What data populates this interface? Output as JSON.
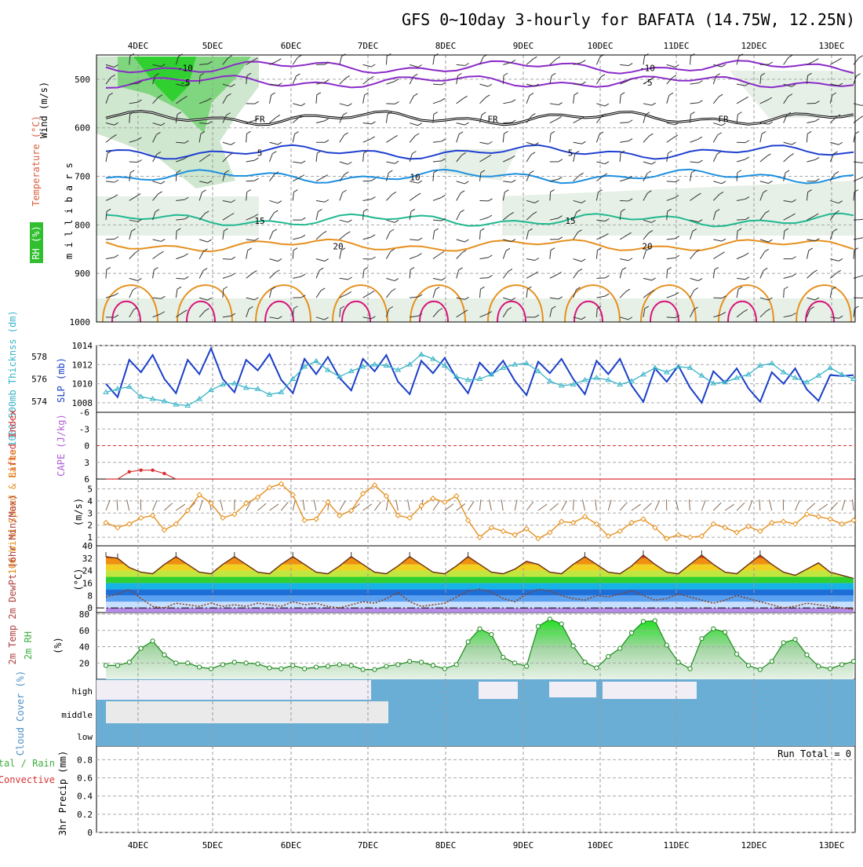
{
  "title": "GFS 0~10day 3-hourly for BAFATA (14.75W, 12.25N)",
  "colors": {
    "temp": "#e6901e",
    "thick": "#3ab5c8",
    "slp": "#1a3fc8",
    "wind": "#e6901e",
    "rh": "#3fae3f",
    "cloud": "#6aaed6",
    "frontline": "#000000",
    "li": "#d93030",
    "cape": "#b25dd6"
  },
  "chart_data": [
    {
      "type": "area",
      "name": "cross-section",
      "x_labels": [
        "4DEC",
        "5DEC",
        "6DEC",
        "7DEC",
        "8DEC",
        "9DEC",
        "10DEC",
        "11DEC",
        "12DEC",
        "13DEC"
      ],
      "ylabel": "m i l l i b a r s",
      "y_ticks": [
        "500",
        "600",
        "700",
        "800",
        "900",
        "1000"
      ],
      "ylim": [
        1000,
        450
      ],
      "side_labels": {
        "rh": "RH (%)",
        "temp": "Temperature (°C)",
        "wind": "Wind (m/s)"
      },
      "contours": [
        {
          "label": "-10",
          "p": 475,
          "color": "#8a2bc8",
          "labels_at": [
            "4DEC",
            "10DEC"
          ]
        },
        {
          "label": "-5",
          "p": 505,
          "color": "#8a2bc8",
          "labels_at": [
            "4DEC",
            "10DEC"
          ]
        },
        {
          "label": "FR",
          "p": 580,
          "color": "#000000",
          "labels_at": [
            "5DEC",
            "8DEC",
            "11DEC"
          ]
        },
        {
          "label": "5",
          "p": 650,
          "color": "#2040d0",
          "labels_at": [
            "5DEC",
            "9DEC"
          ]
        },
        {
          "label": "10",
          "p": 700,
          "color": "#1e90e0",
          "labels_at": [
            "7DEC"
          ]
        },
        {
          "label": "15",
          "p": 790,
          "color": "#20b890",
          "labels_at": [
            "5DEC",
            "9DEC"
          ]
        },
        {
          "label": "20",
          "p": 842,
          "color": "#e6901e",
          "labels_at": [
            "6DEC",
            "10DEC"
          ]
        }
      ]
    },
    {
      "type": "line",
      "name": "slp-thickness",
      "ylabel_left": "1000-500mb Thicknss (dm)",
      "ylabel_right": "SLP (mb)",
      "y_ticks_left": [
        "574",
        "576",
        "578"
      ],
      "y_ticks_right": [
        "1008",
        "1010",
        "1012",
        "1014"
      ],
      "ylim_left": [
        573,
        579
      ],
      "ylim_right": [
        1007,
        1014
      ],
      "series": [
        {
          "name": "SLP",
          "axis": "right",
          "values": [
            1010,
            1008.6,
            1012.5,
            1011.2,
            1013,
            1010.5,
            1009,
            1012.5,
            1011,
            1013.7,
            1010.5,
            1009.1,
            1012.5,
            1011.4,
            1013.1,
            1010.4,
            1009,
            1012.6,
            1011,
            1012.8,
            1010.6,
            1009.3,
            1012.6,
            1011.3,
            1013,
            1010.2,
            1008.9,
            1012.4,
            1011.1,
            1012.7,
            1010.6,
            1009,
            1012.2,
            1010.9,
            1012.4,
            1010.3,
            1008.8,
            1012.3,
            1011.1,
            1012.6,
            1010.5,
            1008.9,
            1012.4,
            1011,
            1012.6,
            1009.8,
            1008.1,
            1011.6,
            1010.2,
            1011.9,
            1009.6,
            1008,
            1011.3,
            1010.1,
            1011.6,
            1009.5,
            1008.1,
            1011.2,
            1010,
            1011.6,
            1009.4,
            1008.2,
            1010.9,
            1010.8,
            1010.9
          ]
        },
        {
          "name": "Thickness",
          "axis": "left",
          "values": [
            574.8,
            575.1,
            575.3,
            574.4,
            574.2,
            574,
            573.7,
            573.6,
            574.2,
            575,
            575.5,
            575.6,
            575.2,
            575.1,
            574.6,
            574.8,
            576,
            577.1,
            577.6,
            576.8,
            576.2,
            576.7,
            577.1,
            577.3,
            577.2,
            576.8,
            577.3,
            578.2,
            577.8,
            577.2,
            576.2,
            575.9,
            576,
            576.4,
            577,
            577.3,
            577.4,
            576.7,
            575.8,
            575.4,
            575.5,
            575.9,
            576.1,
            575.9,
            575.5,
            575.8,
            576.4,
            577,
            576.6,
            577.1,
            577,
            576.3,
            575.6,
            575.7,
            576.1,
            576.4,
            577.2,
            577.4,
            576.6,
            576.1,
            575.7,
            576.3,
            577,
            576.4,
            576
          ]
        }
      ]
    },
    {
      "type": "line",
      "name": "li-cape",
      "ylabel_left": "Lifted Index",
      "ylabel_right": "CAPE (J/kg)",
      "y_ticks": [
        "-6",
        "-3",
        "0",
        "3",
        "6"
      ],
      "ylim": [
        -6,
        6
      ],
      "series": [
        {
          "name": "Lifted Index",
          "values": [
            6,
            6,
            4.7,
            4.4,
            4.4,
            5,
            6,
            6,
            6,
            6,
            6,
            6,
            6,
            6,
            6,
            6,
            6,
            6,
            6,
            6,
            6,
            6,
            6,
            6,
            6,
            6,
            6,
            6,
            6,
            6,
            6,
            6,
            6,
            6,
            6,
            6,
            6,
            6,
            6,
            6,
            6,
            6,
            6,
            6,
            6,
            6,
            6,
            6,
            6,
            6,
            6,
            6,
            6,
            6,
            6,
            6,
            6,
            6,
            6,
            6,
            6,
            6,
            6,
            6,
            6
          ]
        }
      ]
    },
    {
      "type": "line",
      "name": "10m-wind",
      "ylabel_left": "10m Wind Speed & Barbs",
      "ylabel_right": "(m/s)",
      "y_ticks": [
        "1",
        "2",
        "3",
        "4",
        "5"
      ],
      "ylim": [
        0.3,
        5.8
      ],
      "series": [
        {
          "name": "10m Wind Speed",
          "values": [
            2.2,
            1.8,
            2.1,
            2.6,
            2.8,
            1.6,
            2.1,
            3.2,
            4.5,
            3.8,
            2.6,
            2.9,
            3.8,
            4.3,
            5.1,
            5.4,
            4.5,
            2.4,
            2.5,
            3.9,
            2.8,
            3.2,
            4.6,
            5.3,
            4.4,
            2.8,
            2.6,
            3.6,
            4.2,
            3.9,
            4.4,
            2.4,
            1,
            1.8,
            1.5,
            1.2,
            1.7,
            0.9,
            1.4,
            2.3,
            2.2,
            2.7,
            2.1,
            1.1,
            1.5,
            2.2,
            2.5,
            1.8,
            0.9,
            1.2,
            1,
            1.1,
            2.1,
            1.8,
            1.4,
            1.9,
            1.5,
            2.2,
            2.3,
            2.1,
            2.9,
            2.7,
            2.5,
            2.1,
            2.4
          ]
        }
      ]
    },
    {
      "type": "area",
      "name": "2m-temperature",
      "ylabel": "2m Temp 2m DewPt (6hr Min/Max)",
      "ylabel_right": "(°C)",
      "y_ticks": [
        "0",
        "8",
        "16",
        "24",
        "32",
        "40"
      ],
      "ylim": [
        -3,
        40
      ],
      "series": [
        {
          "name": "2m Temp",
          "values": [
            33,
            32,
            26,
            23,
            22,
            28,
            33,
            28,
            23,
            22,
            28,
            33,
            28,
            23,
            22,
            28,
            33,
            28,
            23,
            22,
            27,
            33,
            28,
            23,
            22,
            27,
            33,
            28,
            23,
            22,
            27,
            33,
            28,
            23,
            22,
            25,
            30,
            28,
            23,
            22,
            28,
            33,
            28,
            23,
            22,
            27,
            34,
            28,
            23,
            22,
            28,
            34,
            28,
            23,
            22,
            28,
            34,
            28,
            23,
            21,
            25,
            29,
            23,
            21,
            19
          ]
        },
        {
          "name": "2m DewPt",
          "values": [
            7,
            9,
            12,
            6,
            1,
            0,
            3,
            2,
            1,
            3,
            1,
            2,
            1,
            3,
            2,
            1,
            4,
            2,
            3,
            1,
            0,
            2,
            4,
            3,
            6,
            10,
            4,
            1,
            2,
            3,
            7,
            11,
            12,
            10,
            6,
            4,
            9,
            12,
            11,
            8,
            6,
            5,
            8,
            7,
            9,
            11,
            8,
            5,
            6,
            9,
            7,
            5,
            3,
            5,
            8,
            6,
            4,
            2,
            0,
            1,
            3,
            2,
            1,
            0,
            -1
          ]
        }
      ]
    },
    {
      "type": "area",
      "name": "2m-rh",
      "ylabel": "2m RH",
      "ylabel_right": "(%)",
      "y_ticks": [
        "20",
        "40",
        "60",
        "80"
      ],
      "ylim": [
        0,
        82
      ],
      "series": [
        {
          "name": "2m RH",
          "values": [
            17,
            17,
            21,
            38,
            47,
            30,
            20,
            20,
            15,
            13,
            18,
            21,
            20,
            19,
            14,
            13,
            17,
            13,
            15,
            16,
            18,
            17,
            12,
            12,
            16,
            18,
            22,
            21,
            17,
            13,
            18,
            46,
            62,
            55,
            27,
            20,
            16,
            65,
            74,
            68,
            41,
            21,
            14,
            28,
            38,
            57,
            71,
            72,
            42,
            21,
            13,
            50,
            62,
            58,
            31,
            17,
            12,
            22,
            45,
            49,
            30,
            16,
            13,
            18,
            22
          ]
        }
      ]
    },
    {
      "type": "bar",
      "name": "cloud-cover",
      "ylabel": "Cloud Cover (%)",
      "y_ticks": [
        "high",
        "middle",
        "low"
      ]
    },
    {
      "type": "bar",
      "name": "precip",
      "ylabel": "3hr Precip (mm)",
      "side_labels": {
        "total": "Total / Rain",
        "convective": "Convective"
      },
      "y_ticks": [
        "0",
        "0.2",
        "0.4",
        "0.6",
        "0.8"
      ],
      "ylim": [
        0,
        0.95
      ],
      "annotation": "Run Total = 0"
    }
  ]
}
